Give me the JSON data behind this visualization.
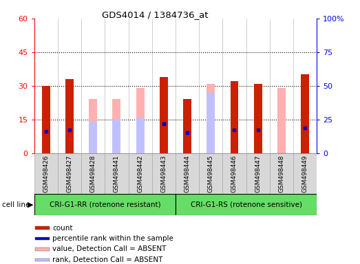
{
  "title": "GDS4014 / 1384736_at",
  "samples": [
    "GSM498426",
    "GSM498427",
    "GSM498428",
    "GSM498441",
    "GSM498442",
    "GSM498443",
    "GSM498444",
    "GSM498445",
    "GSM498446",
    "GSM498447",
    "GSM498448",
    "GSM498449"
  ],
  "count_values": [
    30,
    33,
    null,
    null,
    null,
    34,
    24,
    null,
    32,
    31,
    null,
    35
  ],
  "rank_values": [
    16,
    17,
    null,
    null,
    null,
    22,
    15,
    null,
    17,
    17,
    null,
    19
  ],
  "absent_value_bars": [
    null,
    null,
    24,
    24,
    29,
    null,
    null,
    31,
    null,
    null,
    29,
    null
  ],
  "absent_rank_bars": [
    null,
    null,
    14,
    15,
    16,
    null,
    null,
    27,
    null,
    null,
    null,
    null
  ],
  "group1_label": "CRI-G1-RR (rotenone resistant)",
  "group2_label": "CRI-G1-RS (rotenone sensitive)",
  "group1_color": "#66dd66",
  "group2_color": "#66dd66",
  "ylim_left": [
    0,
    60
  ],
  "ylim_right": [
    0,
    100
  ],
  "yticks_left": [
    0,
    15,
    30,
    45,
    60
  ],
  "yticks_right": [
    0,
    25,
    50,
    75,
    100
  ],
  "count_color": "#cc2000",
  "rank_color": "#0000cc",
  "absent_value_color": "#ffb0b0",
  "absent_rank_color": "#c0c0ff",
  "bg_color": "#e8e8e8",
  "plot_bg": "#ffffff",
  "legend_items": [
    {
      "label": "count",
      "color": "#cc2000"
    },
    {
      "label": "percentile rank within the sample",
      "color": "#0000cc"
    },
    {
      "label": "value, Detection Call = ABSENT",
      "color": "#ffb0b0"
    },
    {
      "label": "rank, Detection Call = ABSENT",
      "color": "#c0c0ff"
    }
  ]
}
